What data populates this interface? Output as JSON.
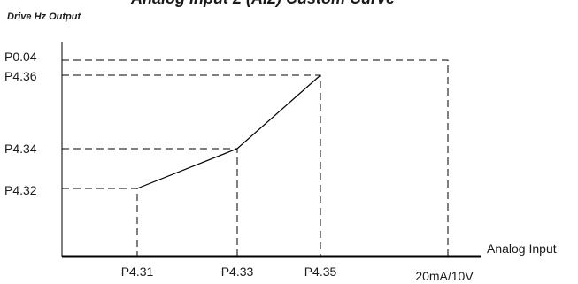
{
  "diagram": {
    "title": "Analog Input 2 (AI2) Custom Curve",
    "y_axis_label": "Drive Hz Output",
    "x_axis_label": "Analog Input",
    "y_ticks": {
      "p004": "P0.04",
      "p436": "P4.36",
      "p434": "P4.34",
      "p432": "P4.32"
    },
    "x_ticks": {
      "p431": "P4.31",
      "p433": "P4.33",
      "p435": "P4.35",
      "max": "20mA/10V"
    }
  }
}
